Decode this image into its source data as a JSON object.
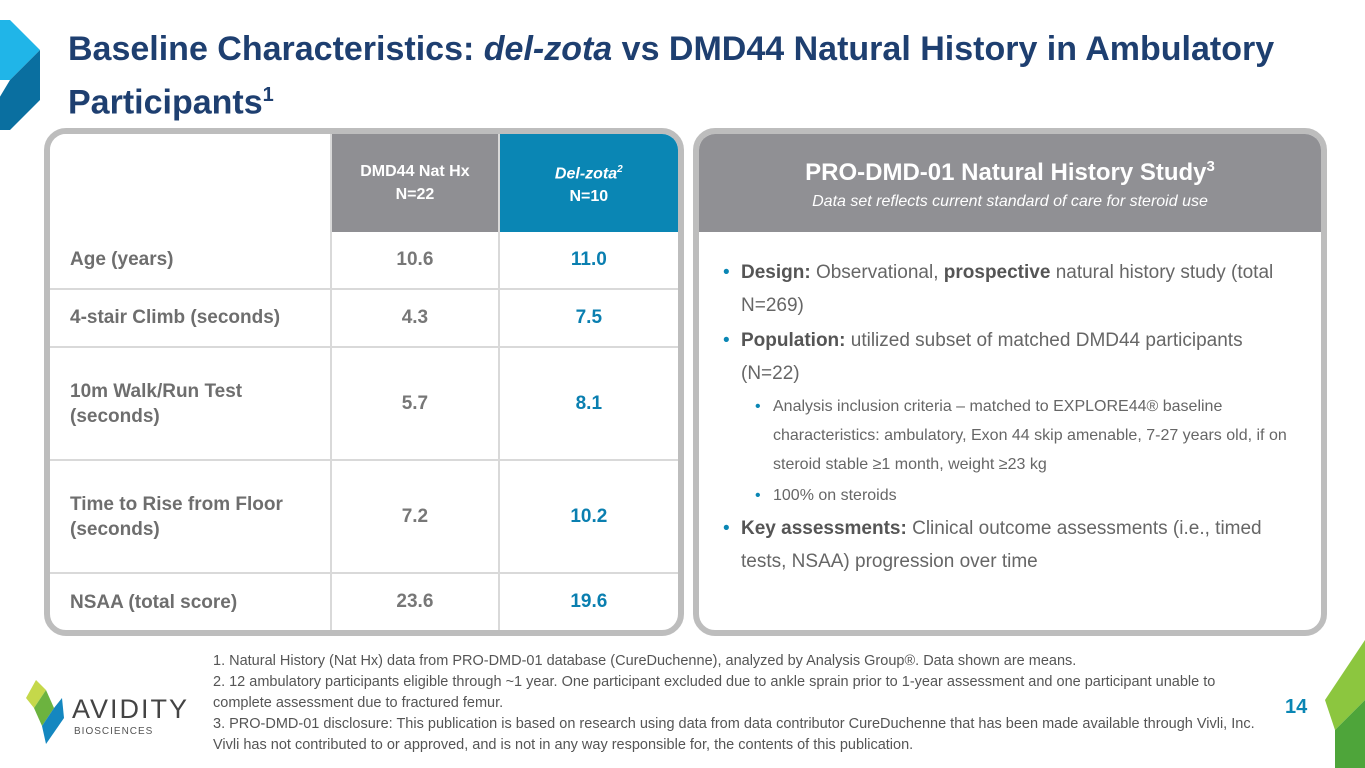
{
  "title": {
    "part1": "Baseline Characteristics: ",
    "italic": "del-zota",
    "part2": " vs DMD44 Natural History in Ambulatory Participants",
    "sup": "1"
  },
  "table": {
    "col1": {
      "line1": "DMD44 Nat Hx",
      "line2": "N=22"
    },
    "col2": {
      "line1": "Del-zota",
      "sup": "2",
      "line2": "N=10"
    },
    "rows": [
      {
        "label": "Age (years)",
        "nathx": "10.6",
        "delzota": "11.0"
      },
      {
        "label": "4-stair Climb (seconds)",
        "nathx": "4.3",
        "delzota": "7.5"
      },
      {
        "label": "10m Walk/Run Test (seconds)",
        "nathx": "5.7",
        "delzota": "8.1"
      },
      {
        "label": "Time to Rise from Floor (seconds)",
        "nathx": "7.2",
        "delzota": "10.2"
      },
      {
        "label": "NSAA (total score)",
        "nathx": "23.6",
        "delzota": "19.6"
      }
    ]
  },
  "study": {
    "title": "PRO-DMD-01 Natural History Study",
    "sup": "3",
    "subtitle": "Data set reflects current standard of care for steroid use",
    "b1_label": "Design:",
    "b1_a": " Observational, ",
    "b1_bold": "prospective",
    "b1_b": " natural history study (total N=269)",
    "b2_label": "Population:",
    "b2_text": " utilized subset of matched DMD44 participants (N=22)",
    "s1": "Analysis inclusion criteria – matched to EXPLORE44® baseline characteristics: ambulatory, Exon 44 skip amenable, 7-27 years old, if on steroid stable ≥1 month, weight ≥23 kg",
    "s2": "100% on steroids",
    "b3_label": "Key assessments:",
    "b3_text": " Clinical outcome assessments (i.e., timed tests, NSAA) progression over time"
  },
  "footnotes": [
    "1. Natural History (Nat Hx) data from PRO-DMD-01 database (CureDuchenne), analyzed by Analysis Group®. Data shown are means.",
    "2. 12 ambulatory participants eligible through ~1 year. One participant excluded due to ankle sprain prior to 1-year assessment and one participant unable to complete assessment due to fractured femur.",
    "3. PRO-DMD-01 disclosure: This publication is based on research using data from data contributor CureDuchenne that has been made available through Vivli, Inc. Vivli has not contributed to or approved, and is not in any way responsible for, the contents of this publication."
  ],
  "logo": {
    "name": "AVIDITY",
    "sub": "BIOSCIENCES"
  },
  "page_number": "14",
  "colors": {
    "title": "#1e3f70",
    "accent": "#0a86b4",
    "header_gray": "#8f8f93",
    "green": "#8cc63f"
  }
}
